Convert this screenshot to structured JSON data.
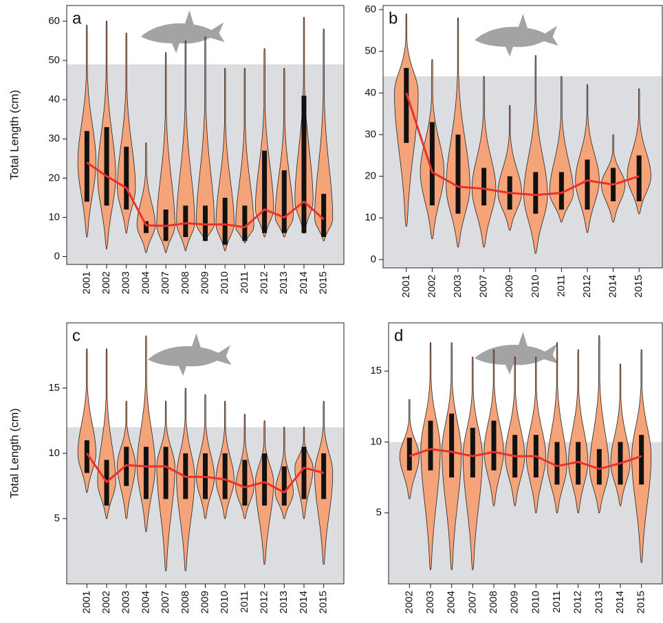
{
  "chart_data": [
    {
      "type": "violin",
      "label": "a",
      "ylabel": "Total Length (cm)",
      "categories": [
        "2001",
        "2002",
        "2003",
        "2004",
        "2007",
        "2008",
        "2009",
        "2010",
        "2011",
        "2012",
        "2013",
        "2014",
        "2015"
      ],
      "values": [
        24,
        20.5,
        17.5,
        8,
        7.8,
        8.5,
        8.2,
        8.2,
        7.5,
        12,
        10,
        14,
        9.5
      ],
      "min": [
        5,
        2,
        6,
        1,
        1,
        1.5,
        4,
        1.5,
        3.5,
        5,
        5,
        6,
        4
      ],
      "max": [
        59,
        60,
        57,
        29,
        52,
        55,
        56,
        48,
        48,
        53,
        48,
        61,
        58
      ],
      "q1": [
        14,
        13,
        12,
        6,
        4,
        5,
        4,
        3,
        4,
        6,
        6,
        6,
        5
      ],
      "q3": [
        32,
        33,
        28,
        9,
        12,
        13,
        13,
        15,
        13,
        27,
        22,
        41,
        16
      ],
      "shade_top": 49,
      "ylim": [
        -2,
        64
      ],
      "yticks": [
        0,
        10,
        20,
        30,
        40,
        50,
        60
      ],
      "violin_color": "#f5a47a",
      "line_color": "#e8312b",
      "shade_color": "#dcdde0"
    },
    {
      "type": "violin",
      "label": "b",
      "categories": [
        "2001",
        "2002",
        "2003",
        "2007",
        "2009",
        "2010",
        "2011",
        "2012",
        "2014",
        "2015"
      ],
      "values": [
        40,
        21,
        17.5,
        17,
        16,
        15.5,
        16,
        19,
        18,
        20
      ],
      "min": [
        8,
        5,
        3,
        3,
        7,
        1.5,
        9,
        6.5,
        9,
        11
      ],
      "max": [
        59,
        48,
        58,
        44,
        37,
        49,
        44,
        42,
        30,
        41
      ],
      "q1": [
        28,
        13,
        11,
        13,
        12,
        11,
        12,
        12,
        14,
        14
      ],
      "q3": [
        46,
        33,
        30,
        22,
        20,
        21,
        21,
        24,
        22,
        25
      ],
      "shade_top": 44,
      "ylim": [
        -2,
        61
      ],
      "yticks": [
        0,
        10,
        20,
        30,
        40,
        50,
        60
      ],
      "violin_color": "#f5a47a",
      "line_color": "#e8312b",
      "shade_color": "#dcdde0"
    },
    {
      "type": "violin",
      "label": "c",
      "ylabel": "Total Length (cm)",
      "categories": [
        "2001",
        "2002",
        "2003",
        "2004",
        "2007",
        "2008",
        "2009",
        "2010",
        "2011",
        "2012",
        "2013",
        "2014",
        "2015"
      ],
      "values": [
        10,
        7.8,
        9.1,
        9,
        9,
        8.2,
        8.2,
        8,
        7.4,
        7.8,
        7,
        8.9,
        8.5
      ],
      "min": [
        7,
        5,
        5,
        4,
        1,
        1,
        5,
        5,
        5,
        1.5,
        5,
        5,
        1.5
      ],
      "max": [
        18,
        18,
        14,
        19,
        14,
        15,
        14.5,
        14,
        13,
        12.5,
        12,
        12,
        14
      ],
      "q1": [
        8.5,
        6,
        7.5,
        6.5,
        6.5,
        6.5,
        6.5,
        6.5,
        6,
        6,
        6,
        6.5,
        6.5
      ],
      "q3": [
        11,
        9.5,
        10.5,
        10.5,
        10.5,
        10,
        10,
        10,
        9.5,
        10,
        9,
        10.5,
        10
      ],
      "shade_top": 12,
      "ylim": [
        0,
        20
      ],
      "yticks": [
        5,
        10,
        15
      ],
      "violin_color": "#f5a47a",
      "line_color": "#e8312b",
      "shade_color": "#dcdde0"
    },
    {
      "type": "violin",
      "label": "d",
      "categories": [
        "2002",
        "2003",
        "2004",
        "2007",
        "2008",
        "2009",
        "2010",
        "2011",
        "2012",
        "2013",
        "2014",
        "2015"
      ],
      "values": [
        9,
        9.5,
        9.3,
        9,
        9.3,
        9,
        9,
        8.3,
        8.6,
        8.1,
        8.5,
        9
      ],
      "min": [
        6,
        1,
        1,
        1,
        5.5,
        5.5,
        5,
        5,
        5,
        5,
        5.5,
        1.5
      ],
      "max": [
        13,
        17,
        17,
        16,
        16.5,
        16,
        16,
        17,
        16.5,
        17.5,
        15.5,
        16.5
      ],
      "q1": [
        8,
        8,
        7.5,
        7.5,
        8,
        7.5,
        7.5,
        7,
        7,
        7,
        7,
        7
      ],
      "q3": [
        10.3,
        11.5,
        12,
        11,
        11.5,
        10.5,
        10.5,
        10,
        10,
        9.5,
        10,
        10.5
      ],
      "shade_top": 10,
      "ylim": [
        0,
        18.4
      ],
      "yticks": [
        5,
        10,
        15
      ],
      "violin_color": "#f5a47a",
      "line_color": "#e8312b",
      "shade_color": "#dcdde0"
    }
  ]
}
